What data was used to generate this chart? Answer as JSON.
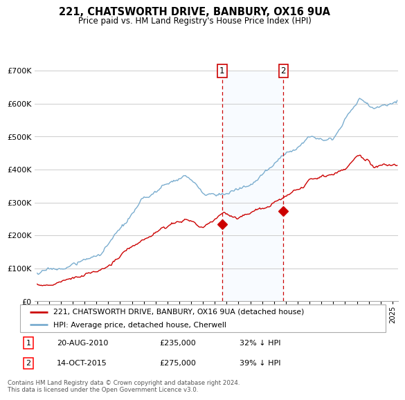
{
  "title": "221, CHATSWORTH DRIVE, BANBURY, OX16 9UA",
  "subtitle": "Price paid vs. HM Land Registry's House Price Index (HPI)",
  "legend_line1": "221, CHATSWORTH DRIVE, BANBURY, OX16 9UA (detached house)",
  "legend_line2": "HPI: Average price, detached house, Cherwell",
  "annotation1_num": "1",
  "annotation1_date": "20-AUG-2010",
  "annotation1_price": "£235,000",
  "annotation1_hpi": "32% ↓ HPI",
  "annotation2_num": "2",
  "annotation2_date": "14-OCT-2015",
  "annotation2_price": "£275,000",
  "annotation2_hpi": "39% ↓ HPI",
  "footer": "Contains HM Land Registry data © Crown copyright and database right 2024.\nThis data is licensed under the Open Government Licence v3.0.",
  "vline1_year": 2010.62,
  "vline2_year": 2015.79,
  "sale1_year": 2010.62,
  "sale1_price": 235000,
  "sale2_year": 2015.79,
  "sale2_price": 275000,
  "red_color": "#cc0000",
  "blue_color": "#7aadcf",
  "shade_color": "#ddeeff",
  "bg_color": "#ffffff",
  "grid_color": "#cccccc",
  "ylim": [
    0,
    700000
  ],
  "xlim_start": 1994.8,
  "xlim_end": 2025.5
}
